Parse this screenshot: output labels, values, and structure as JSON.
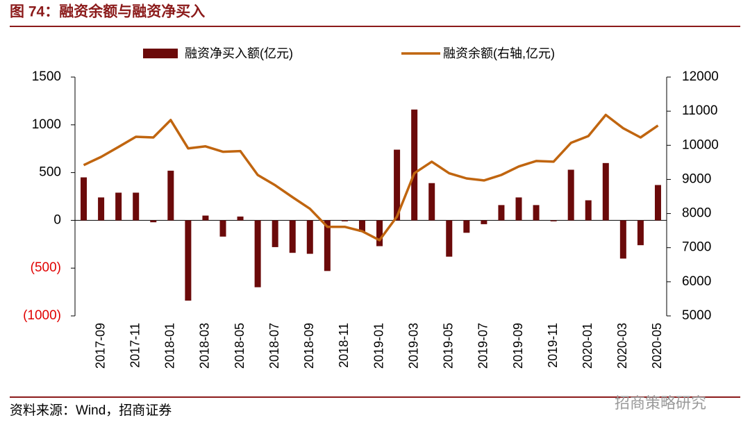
{
  "chart_data": {
    "type": "bar_line",
    "title": "图 74：融资余额与融资净买入",
    "source": "资料来源：Wind，招商证券",
    "watermark": "招商策略研究",
    "title_color": "#8b1a1a",
    "rule_color": "#8b1a1a",
    "negative_tick_color": "#e00000",
    "categories": [
      null,
      "2017-09",
      null,
      "2017-11",
      null,
      "2018-01",
      null,
      "2018-03",
      null,
      "2018-05",
      null,
      "2018-07",
      null,
      "2018-09",
      null,
      "2018-11",
      null,
      "2019-01",
      null,
      "2019-03",
      null,
      "2019-05",
      null,
      "2019-07",
      null,
      "2019-09",
      null,
      "2019-11",
      null,
      "2020-01",
      null,
      "2020-03",
      null,
      "2020-05"
    ],
    "series": [
      {
        "name": "融资净买入额(亿元)",
        "type": "bar",
        "color": "#6b0a0a",
        "values": [
          450,
          240,
          290,
          290,
          -20,
          520,
          -840,
          50,
          -170,
          40,
          -700,
          -280,
          -340,
          -350,
          -530,
          -10,
          -120,
          -270,
          740,
          1160,
          390,
          -380,
          -130,
          -40,
          160,
          240,
          160,
          -10,
          530,
          210,
          600,
          -400,
          -260,
          370
        ]
      },
      {
        "name": "融资余额(右轴,亿元)",
        "type": "line",
        "axis": "y2",
        "color": "#c0650f",
        "values": [
          9420,
          9660,
          9950,
          10250,
          10230,
          10740,
          9910,
          9970,
          9810,
          9830,
          9130,
          8830,
          8480,
          8140,
          7610,
          7610,
          7480,
          7220,
          7910,
          9180,
          9520,
          9180,
          9030,
          8970,
          9130,
          9380,
          9540,
          9520,
          10070,
          10270,
          10890,
          10500,
          10230,
          10580
        ]
      }
    ],
    "ylim": [
      -1000,
      1500
    ],
    "yticks": [
      {
        "value": -1000,
        "label": "(1000)"
      },
      {
        "value": -500,
        "label": "(500)"
      },
      0,
      500,
      1000,
      1500
    ],
    "y2lim": [
      5000,
      12000
    ],
    "y2ticks": [
      5000,
      6000,
      7000,
      8000,
      9000,
      10000,
      11000,
      12000
    ]
  }
}
